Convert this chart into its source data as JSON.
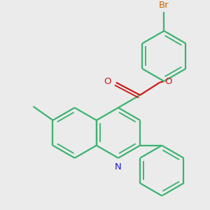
{
  "bg_color": "#ebebeb",
  "bond_color": "#3cb371",
  "bond_width": 1.6,
  "n_color": "#1a1acc",
  "o_color": "#cc1a1a",
  "br_color": "#cc6600",
  "figsize": [
    3.0,
    3.0
  ],
  "dpi": 100,
  "BL": 0.38,
  "xlim": [
    -1.5,
    1.5
  ],
  "ylim": [
    -1.6,
    1.4
  ]
}
